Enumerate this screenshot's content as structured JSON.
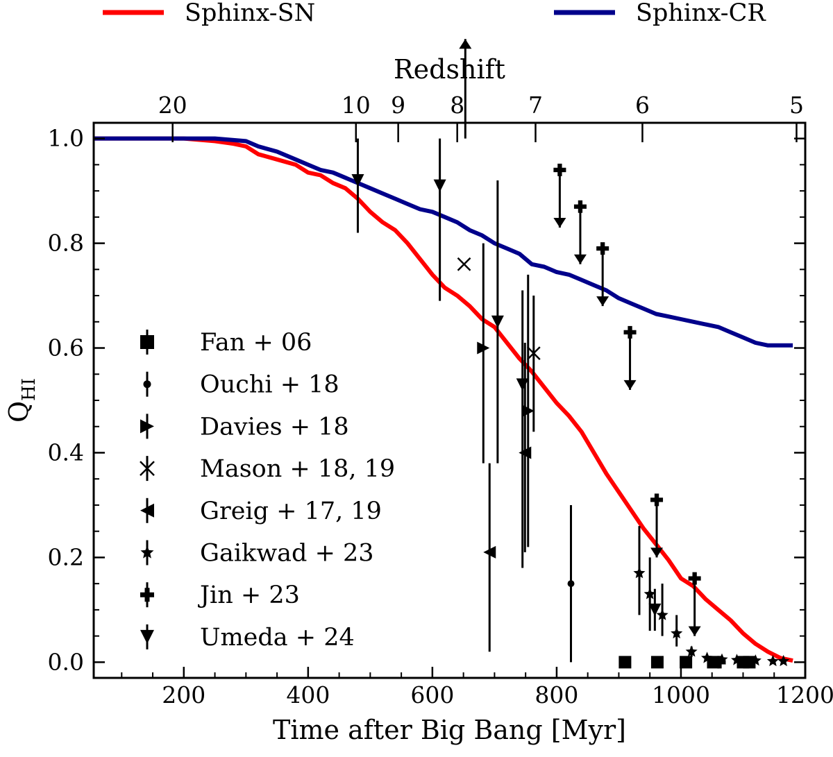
{
  "chart_data": {
    "type": "line",
    "xlabel": "Time after Big Bang [Myr]",
    "ylabel_main": "Q",
    "ylabel_sub": "HI",
    "top_axis_label": "Redshift",
    "xlim": [
      55,
      1200
    ],
    "ylim": [
      -0.03,
      1.03
    ],
    "x_ticks": [
      200,
      400,
      600,
      800,
      1000,
      1200
    ],
    "x_tick_labels": [
      "200",
      "400",
      "600",
      "800",
      "1000",
      "1200"
    ],
    "x_minor_step": 50,
    "y_ticks": [
      0.0,
      0.2,
      0.4,
      0.6,
      0.8,
      1.0
    ],
    "y_tick_labels": [
      "0.0",
      "0.2",
      "0.4",
      "0.6",
      "0.8",
      "1.0"
    ],
    "y_minor_step": 0.05,
    "top_ticks": [
      {
        "label": "20",
        "t": 182
      },
      {
        "label": "10",
        "t": 477
      },
      {
        "label": "9",
        "t": 545
      },
      {
        "label": "8",
        "t": 640
      },
      {
        "label": "7",
        "t": 766
      },
      {
        "label": "6",
        "t": 938
      },
      {
        "label": "5",
        "t": 1186
      }
    ],
    "series": [
      {
        "name": "Sphinx-SN",
        "color": "#ff0000",
        "x": [
          55,
          100,
          150,
          200,
          250,
          280,
          300,
          320,
          350,
          380,
          400,
          420,
          440,
          460,
          480,
          500,
          520,
          540,
          560,
          570,
          580,
          600,
          620,
          640,
          660,
          680,
          700,
          720,
          740,
          760,
          780,
          800,
          820,
          840,
          860,
          880,
          900,
          920,
          940,
          960,
          980,
          1000,
          1020,
          1040,
          1060,
          1080,
          1100,
          1120,
          1140,
          1160,
          1180
        ],
        "y": [
          1.0,
          1.0,
          1.0,
          1.0,
          0.995,
          0.99,
          0.985,
          0.97,
          0.96,
          0.95,
          0.935,
          0.93,
          0.915,
          0.905,
          0.885,
          0.86,
          0.84,
          0.825,
          0.8,
          0.785,
          0.77,
          0.74,
          0.715,
          0.7,
          0.68,
          0.655,
          0.64,
          0.61,
          0.58,
          0.555,
          0.525,
          0.495,
          0.47,
          0.44,
          0.4,
          0.36,
          0.325,
          0.29,
          0.255,
          0.225,
          0.195,
          0.16,
          0.145,
          0.12,
          0.1,
          0.08,
          0.055,
          0.035,
          0.02,
          0.008,
          0.003
        ]
      },
      {
        "name": "Sphinx-CR",
        "color": "#00008b",
        "x": [
          55,
          100,
          150,
          200,
          250,
          300,
          320,
          350,
          380,
          400,
          420,
          440,
          460,
          480,
          500,
          520,
          540,
          560,
          580,
          600,
          620,
          640,
          660,
          680,
          700,
          720,
          740,
          760,
          780,
          800,
          820,
          840,
          860,
          880,
          900,
          920,
          940,
          960,
          980,
          1000,
          1020,
          1040,
          1060,
          1080,
          1100,
          1120,
          1140,
          1160,
          1180
        ],
        "y": [
          1.0,
          1.0,
          1.0,
          1.0,
          1.0,
          0.995,
          0.985,
          0.975,
          0.96,
          0.95,
          0.94,
          0.935,
          0.925,
          0.915,
          0.905,
          0.895,
          0.885,
          0.875,
          0.865,
          0.86,
          0.85,
          0.84,
          0.825,
          0.815,
          0.8,
          0.79,
          0.78,
          0.76,
          0.755,
          0.745,
          0.74,
          0.73,
          0.72,
          0.71,
          0.695,
          0.685,
          0.675,
          0.665,
          0.66,
          0.655,
          0.65,
          0.645,
          0.64,
          0.63,
          0.62,
          0.61,
          0.605,
          0.605,
          0.605
        ]
      }
    ],
    "observations": [
      {
        "name": "Fan + 06",
        "marker": "square",
        "points": [
          {
            "x": 910,
            "y": 0.0
          },
          {
            "x": 962,
            "y": 0.0
          },
          {
            "x": 1008,
            "y": 0.0
          },
          {
            "x": 1052,
            "y": 0.0
          },
          {
            "x": 1100,
            "y": 0.0
          },
          {
            "x": 1110,
            "y": 0.0
          }
        ]
      },
      {
        "name": "Ouchi + 18",
        "marker": "circle",
        "points": [
          {
            "x": 823,
            "y": 0.15,
            "err_lo": 0.15,
            "err_hi": 0.15
          }
        ]
      },
      {
        "name": "Davies + 18",
        "marker": "triangle-right",
        "points": [
          {
            "x": 682,
            "y": 0.6,
            "err_lo": 0.22,
            "err_hi": 0.2
          },
          {
            "x": 754,
            "y": 0.48,
            "err_lo": 0.26,
            "err_hi": 0.26
          }
        ]
      },
      {
        "name": "Mason + 18, 19",
        "marker": "x",
        "points": [
          {
            "x": 651,
            "y": 0.76
          },
          {
            "x": 763,
            "y": 0.59,
            "err_lo": 0.15,
            "err_hi": 0.11
          }
        ]
      },
      {
        "name": "Greig + 17, 19",
        "marker": "triangle-left",
        "points": [
          {
            "x": 692,
            "y": 0.21,
            "err_lo": 0.19,
            "err_hi": 0.17
          },
          {
            "x": 749,
            "y": 0.4,
            "err_lo": 0.19,
            "err_hi": 0.21
          }
        ]
      },
      {
        "name": "Gaikwad + 23",
        "marker": "star",
        "points": [
          {
            "x": 933,
            "y": 0.17,
            "err_lo": 0.08,
            "err_hi": 0.09
          },
          {
            "x": 950,
            "y": 0.13,
            "err_lo": 0.07,
            "err_hi": 0.07
          },
          {
            "x": 970,
            "y": 0.09,
            "err_lo": 0.04,
            "err_hi": 0.06
          },
          {
            "x": 993,
            "y": 0.055,
            "err_lo": 0.025,
            "err_hi": 0.035
          },
          {
            "x": 1017,
            "y": 0.02,
            "err_lo": 0.01,
            "err_hi": 0.01
          },
          {
            "x": 1042,
            "y": 0.008
          },
          {
            "x": 1066,
            "y": 0.005
          },
          {
            "x": 1090,
            "y": 0.004
          },
          {
            "x": 1120,
            "y": 0.003
          },
          {
            "x": 1148,
            "y": 0.002
          },
          {
            "x": 1165,
            "y": 0.002
          }
        ]
      },
      {
        "name": "Jin + 23",
        "marker": "plus",
        "points": [
          {
            "x": 805,
            "y": 0.94,
            "upper_limit": true
          },
          {
            "x": 838,
            "y": 0.87,
            "upper_limit": true
          },
          {
            "x": 874,
            "y": 0.79,
            "upper_limit": true
          },
          {
            "x": 918,
            "y": 0.63,
            "upper_limit": true
          },
          {
            "x": 961,
            "y": 0.31,
            "upper_limit": true
          },
          {
            "x": 1022,
            "y": 0.16,
            "upper_limit": true
          },
          {
            "x": 1062,
            "y": 0.0
          }
        ]
      },
      {
        "name": "Umeda + 24",
        "marker": "triangle-down",
        "points": [
          {
            "x": 480,
            "y": 0.92,
            "err_lo": 0.1,
            "err_hi": 0.08
          },
          {
            "x": 612,
            "y": 0.91,
            "err_lo": 0.22,
            "err_hi": 0.09
          },
          {
            "x": 705,
            "y": 0.65,
            "err_lo": 0.27,
            "err_hi": 0.27
          },
          {
            "x": 745,
            "y": 0.53,
            "err_lo": 0.35,
            "err_hi": 0.18
          },
          {
            "x": 958,
            "y": 0.1,
            "err_lo": 0.04,
            "err_hi": 0.04
          },
          {
            "x": 653,
            "y": 1.0,
            "lower_limit": true
          }
        ]
      }
    ],
    "legend_placement": "center-left (inside axes); model lines above plot"
  }
}
